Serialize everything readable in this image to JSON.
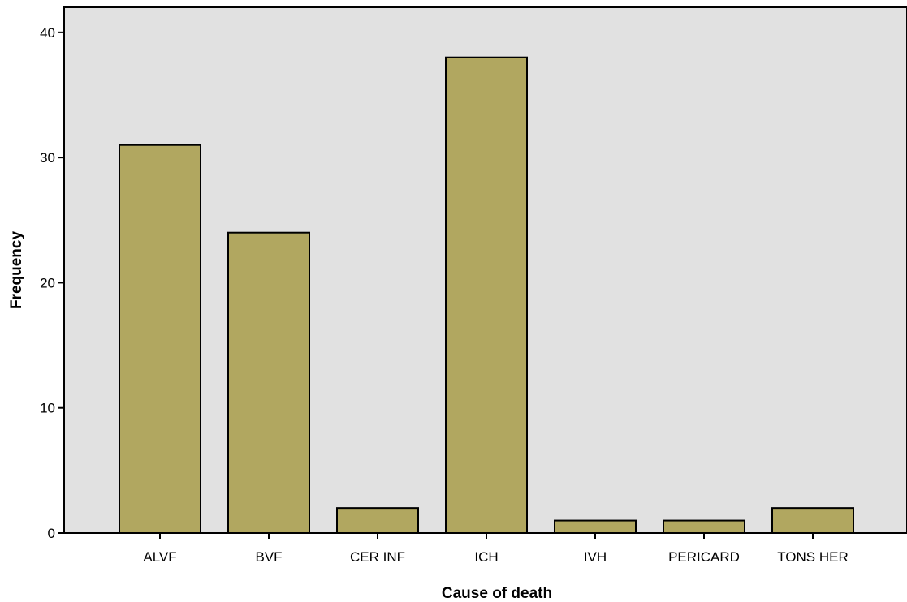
{
  "chart_data": {
    "type": "bar",
    "title": "",
    "xlabel": "Cause of death",
    "ylabel": "Frequency",
    "categories": [
      "ALVF",
      "BVF",
      "CER INF",
      "ICH",
      "IVH",
      "PERICARD",
      "TONS HER"
    ],
    "values": [
      31,
      24,
      2,
      38,
      1,
      1,
      2
    ],
    "ylim": [
      0,
      42
    ],
    "yticks": [
      0,
      10,
      20,
      30,
      40
    ],
    "grid": false,
    "legend": "none",
    "colors": {
      "plot_background": "#e1e1e1",
      "bar_fill": "#b1a760",
      "bar_stroke": "#000000",
      "axis": "#000000"
    }
  }
}
